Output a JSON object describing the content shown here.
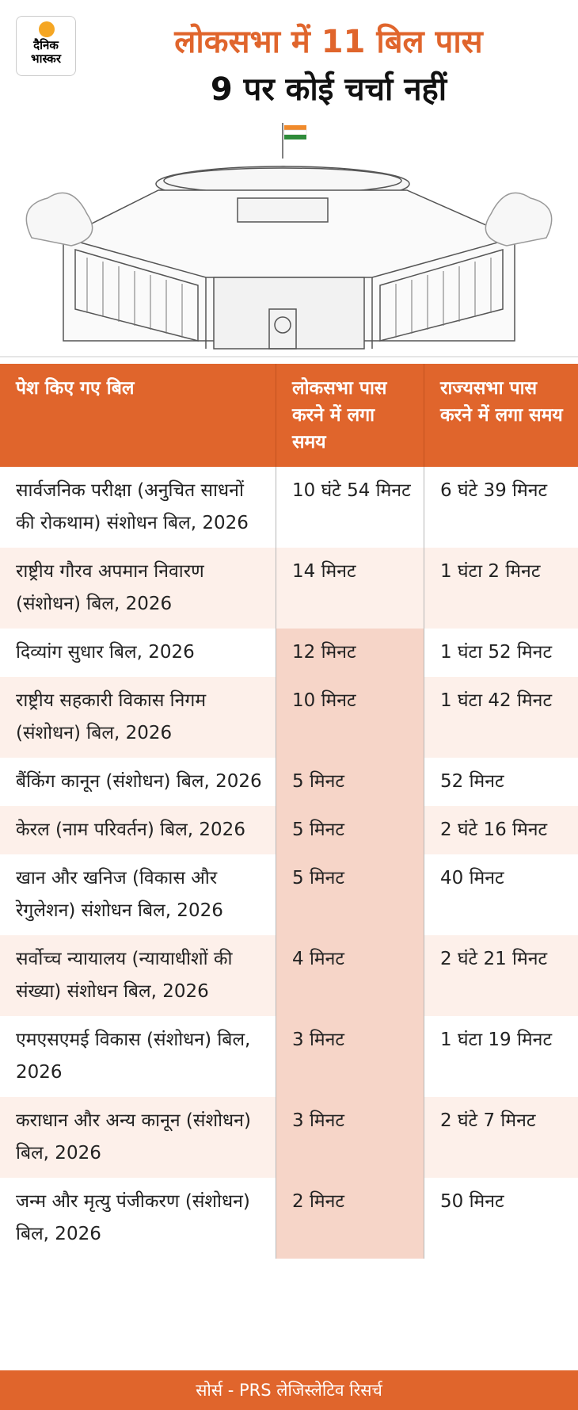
{
  "header": {
    "logo": [
      "दैनिक",
      "भास्कर"
    ],
    "title": "लोकसभा में 11 बिल पास",
    "subtitle": "9 पर कोई चर्चा नहीं"
  },
  "table": {
    "columns": [
      "पेश किए गए बिल",
      "लोकसभा पास करने में लगा समय",
      "राज्यसभा पास करने में लगा समय"
    ],
    "rows": [
      [
        "सार्वजनिक परीक्षा (अनुचित साधनों की रोकथाम) संशोधन बिल, 2026",
        "10 घंटे 54 मिनट",
        "6 घंटे 39 मिनट"
      ],
      [
        "राष्ट्रीय गौरव अपमान निवारण (संशोधन) बिल, 2026",
        "14 मिनट",
        "1 घंटा 2 मिनट"
      ],
      [
        "दिव्यांग सुधार बिल, 2026",
        "12 मिनट",
        "1 घंटा 52 मिनट"
      ],
      [
        "राष्ट्रीय सहकारी विकास निगम (संशोधन) बिल, 2026",
        "10 मिनट",
        "1 घंटा 42 मिनट"
      ],
      [
        "बैंकिंग कानून (संशोधन) बिल, 2026",
        "5 मिनट",
        "52 मिनट"
      ],
      [
        "केरल (नाम परिवर्तन) बिल, 2026",
        "5 मिनट",
        "2 घंटे 16 मिनट"
      ],
      [
        "खान और खनिज (विकास और रेगुलेशन) संशोधन बिल, 2026",
        "5 मिनट",
        "40 मिनट"
      ],
      [
        "सर्वोच्च न्यायालय (न्यायाधीशों की संख्या) संशोधन बिल, 2026",
        "4 मिनट",
        "2 घंटे 21 मिनट"
      ],
      [
        "एमएसएमई विकास (संशोधन) बिल, 2026",
        "3 मिनट",
        "1 घंटा 19 मिनट"
      ],
      [
        "कराधान और अन्य कानून (संशोधन) बिल, 2026",
        "3 मिनट",
        "2 घंटे 7 मिनट"
      ],
      [
        "जन्म और मृत्यु पंजीकरण (संशोधन) बिल, 2026",
        "2 मिनट",
        "50 मिनट"
      ]
    ]
  },
  "footer": "सोर्स - PRS लेजिस्लेटिव रिसर्च"
}
